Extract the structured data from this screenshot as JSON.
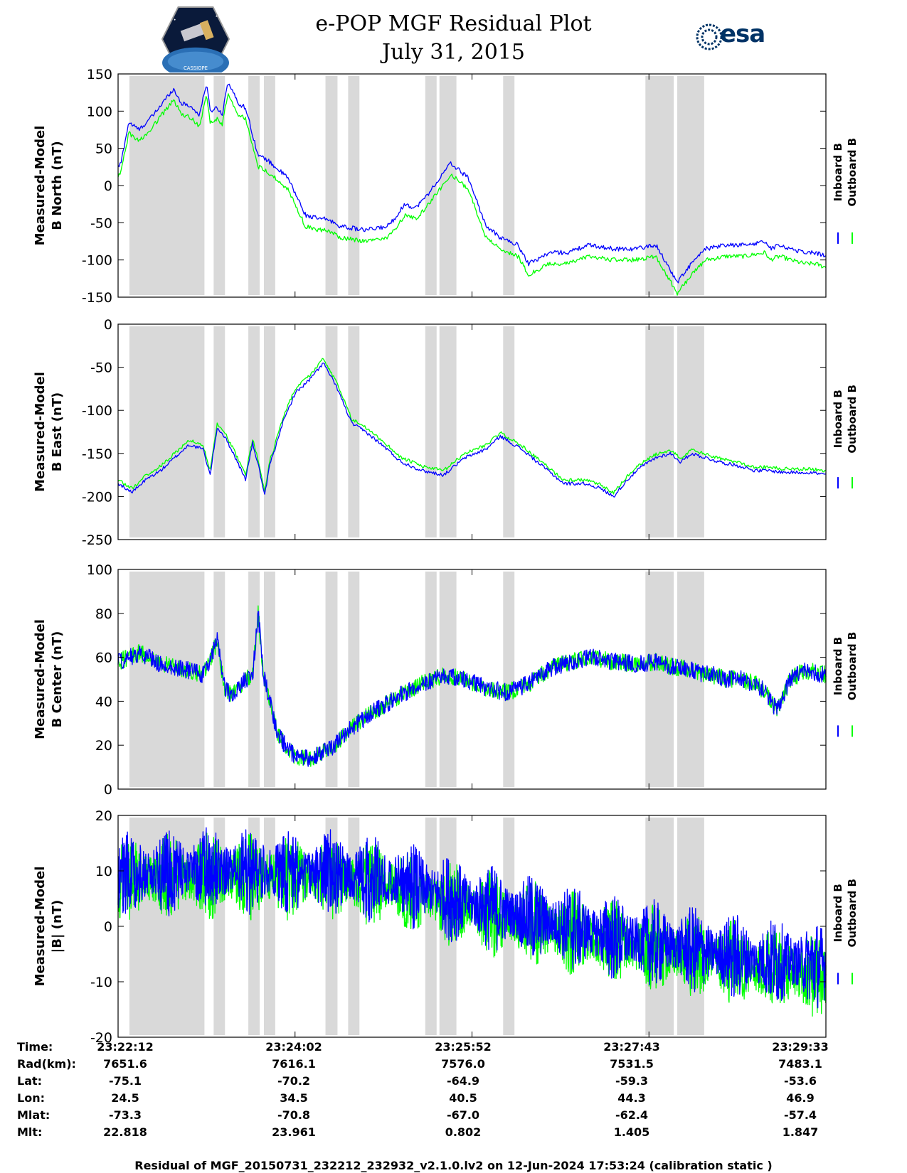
{
  "header": {
    "title_line1": "e-POP MGF Residual Plot",
    "title_line2": "July 31, 2015",
    "esa_logo_text": "esa",
    "left_logo_text": "CASSIOPE"
  },
  "colors": {
    "inboard": "#0000ff",
    "outboard": "#00ff00",
    "shade": "#d9d9d9"
  },
  "chart_data": [
    {
      "type": "line",
      "ylabel_line1": "Measured-Model",
      "ylabel_line2": "B North (nT)",
      "ylim": [
        -150,
        150
      ],
      "yticks": [
        150,
        100,
        50,
        0,
        -50,
        -100,
        -150
      ],
      "series": [
        {
          "name": "Inboard B",
          "x": [
            0,
            0.4,
            1.5,
            3,
            5,
            7.8,
            9,
            10,
            11.5,
            12.5,
            13,
            14,
            14.7,
            15.5,
            17,
            18,
            19.8,
            21,
            24,
            26.5,
            28.5,
            29.5,
            31.5,
            35,
            38,
            39,
            40.5,
            42,
            43.5,
            47,
            49.5,
            52,
            54,
            56.5,
            58,
            61,
            63,
            63.5,
            66.5,
            70,
            73,
            76,
            79,
            81,
            83,
            86,
            88.5,
            91.5,
            92,
            93.5,
            95,
            97,
            98.5,
            100
          ],
          "values": [
            25,
            30,
            85,
            75,
            95,
            130,
            110,
            108,
            95,
            138,
            100,
            105,
            95,
            140,
            110,
            105,
            40,
            35,
            10,
            -40,
            -45,
            -45,
            -55,
            -60,
            -55,
            -45,
            -25,
            -30,
            -15,
            30,
            10,
            -55,
            -70,
            -80,
            -105,
            -90,
            -90,
            -90,
            -80,
            -85,
            -85,
            -80,
            -130,
            -105,
            -85,
            -80,
            -80,
            -75,
            -85,
            -80,
            -85,
            -90,
            -90,
            -95
          ]
        },
        {
          "name": "Outboard B",
          "x": [
            0,
            0.4,
            1.5,
            3,
            5,
            7.8,
            9,
            10,
            11.5,
            12.5,
            13,
            14,
            14.7,
            15.5,
            17,
            18,
            19.8,
            21,
            24,
            26.5,
            28.5,
            29.5,
            31.5,
            35,
            38,
            39,
            40.5,
            42,
            43.5,
            47,
            49.5,
            52,
            54,
            56.5,
            58,
            61,
            63,
            63.5,
            66.5,
            70,
            73,
            76,
            79,
            81,
            83,
            86,
            88.5,
            91.5,
            92,
            93.5,
            95,
            97,
            98.5,
            100
          ],
          "values": [
            12,
            18,
            70,
            60,
            80,
            115,
            95,
            93,
            80,
            122,
            85,
            90,
            80,
            124,
            94,
            90,
            25,
            20,
            -5,
            -55,
            -60,
            -60,
            -70,
            -75,
            -70,
            -60,
            -40,
            -45,
            -30,
            15,
            -5,
            -70,
            -85,
            -95,
            -120,
            -105,
            -105,
            -105,
            -95,
            -100,
            -100,
            -95,
            -145,
            -120,
            -100,
            -95,
            -95,
            -90,
            -100,
            -95,
            -100,
            -105,
            -105,
            -110
          ]
        }
      ]
    },
    {
      "type": "line",
      "ylabel_line1": "Measured-Model",
      "ylabel_line2": "B East (nT)",
      "ylim": [
        -250,
        0
      ],
      "yticks": [
        0,
        -50,
        -100,
        -150,
        -200,
        -250
      ],
      "series": [
        {
          "name": "Inboard B",
          "x": [
            0,
            2,
            4,
            6,
            8,
            10,
            12,
            13,
            14,
            15,
            16,
            18,
            19,
            20,
            20.7,
            21.5,
            22,
            23,
            25,
            27,
            29,
            31,
            33,
            35,
            38,
            40,
            43,
            46,
            49,
            52,
            54,
            57,
            60,
            63,
            64,
            66,
            68,
            70,
            72,
            74,
            76,
            78,
            79.5,
            81,
            83,
            85,
            88,
            90,
            92,
            94,
            96,
            98,
            100
          ],
          "values": [
            -185,
            -195,
            -180,
            -170,
            -155,
            -140,
            -145,
            -175,
            -120,
            -130,
            -145,
            -180,
            -138,
            -170,
            -200,
            -160,
            -150,
            -120,
            -80,
            -65,
            -45,
            -75,
            -115,
            -125,
            -145,
            -160,
            -170,
            -175,
            -155,
            -145,
            -130,
            -145,
            -165,
            -185,
            -185,
            -185,
            -190,
            -200,
            -180,
            -165,
            -155,
            -150,
            -160,
            -150,
            -155,
            -160,
            -165,
            -170,
            -170,
            -172,
            -172,
            -172,
            -175
          ]
        },
        {
          "name": "Outboard B",
          "x": [
            0,
            2,
            4,
            6,
            8,
            10,
            12,
            13,
            14,
            15,
            16,
            18,
            19,
            20,
            20.7,
            21.5,
            22,
            23,
            25,
            27,
            29,
            31,
            33,
            35,
            38,
            40,
            43,
            46,
            49,
            52,
            54,
            57,
            60,
            63,
            64,
            66,
            68,
            70,
            72,
            74,
            76,
            78,
            79.5,
            81,
            83,
            85,
            88,
            90,
            92,
            94,
            96,
            98,
            100
          ],
          "values": [
            -181,
            -191,
            -175,
            -165,
            -150,
            -135,
            -140,
            -170,
            -115,
            -125,
            -140,
            -175,
            -133,
            -165,
            -195,
            -155,
            -145,
            -115,
            -75,
            -60,
            -40,
            -70,
            -110,
            -120,
            -140,
            -155,
            -165,
            -170,
            -150,
            -140,
            -126,
            -141,
            -161,
            -181,
            -181,
            -181,
            -186,
            -196,
            -176,
            -161,
            -151,
            -146,
            -156,
            -146,
            -151,
            -156,
            -161,
            -166,
            -166,
            -168,
            -168,
            -168,
            -171
          ]
        }
      ]
    },
    {
      "type": "line",
      "ylabel_line1": "Measured-Model",
      "ylabel_line2": "B Center (nT)",
      "ylim": [
        0,
        100
      ],
      "yticks": [
        100,
        80,
        60,
        40,
        20,
        0
      ],
      "series": [
        {
          "name": "Inboard B",
          "x": [
            0,
            3,
            6,
            9,
            12,
            13,
            14,
            15,
            16,
            18,
            19,
            19.8,
            20.5,
            21.5,
            22.5,
            24,
            25,
            27,
            30,
            33,
            36,
            40,
            43,
            46,
            49,
            52,
            55,
            58,
            61,
            64,
            67,
            70,
            73,
            76,
            78,
            80,
            82,
            84,
            86,
            88,
            90,
            91.5,
            93,
            95,
            97,
            100
          ],
          "values": [
            58,
            62,
            57,
            55,
            52,
            58,
            68,
            47,
            42,
            50,
            52,
            80,
            52,
            40,
            25,
            18,
            15,
            14,
            18,
            28,
            35,
            43,
            48,
            52,
            50,
            46,
            44,
            48,
            55,
            58,
            60,
            58,
            57,
            58,
            56,
            55,
            53,
            52,
            50,
            50,
            48,
            44,
            36,
            50,
            54,
            52
          ]
        },
        {
          "name": "Outboard B",
          "x": [
            0,
            3,
            6,
            9,
            12,
            13,
            14,
            15,
            16,
            18,
            19,
            19.8,
            20.5,
            21.5,
            22.5,
            24,
            25,
            27,
            30,
            33,
            36,
            40,
            43,
            46,
            49,
            52,
            55,
            58,
            61,
            64,
            67,
            70,
            73,
            76,
            78,
            80,
            82,
            84,
            86,
            88,
            90,
            91.5,
            93,
            95,
            97,
            100
          ],
          "values": [
            58,
            62,
            57,
            55,
            52,
            58,
            68,
            47,
            42,
            50,
            52,
            80,
            52,
            40,
            25,
            18,
            15,
            14,
            18,
            28,
            35,
            43,
            48,
            52,
            50,
            46,
            44,
            48,
            55,
            58,
            60,
            58,
            57,
            58,
            56,
            55,
            53,
            52,
            50,
            50,
            48,
            44,
            36,
            50,
            54,
            52
          ]
        }
      ]
    },
    {
      "type": "line",
      "ylabel_line1": "Measured-Model",
      "ylabel_line2": "|B| (nT)",
      "ylim": [
        -20,
        20
      ],
      "yticks": [
        20,
        10,
        0,
        -10,
        -20
      ],
      "series": [
        {
          "name": "Inboard B",
          "x": [
            0,
            10,
            20,
            30,
            40,
            50,
            60,
            70,
            80,
            90,
            100
          ],
          "values": [
            9,
            10,
            10,
            9.5,
            8,
            4,
            1,
            -2,
            -4,
            -6,
            -7
          ]
        },
        {
          "name": "Outboard B",
          "x": [
            0,
            10,
            20,
            30,
            40,
            50,
            60,
            70,
            80,
            90,
            100
          ],
          "values": [
            8,
            9,
            9,
            8.5,
            7,
            3,
            0,
            -3,
            -5,
            -7.5,
            -9
          ]
        }
      ]
    }
  ],
  "shaded_intervals": [
    [
      1.6,
      12.2
    ],
    [
      13.5,
      15.1
    ],
    [
      18.4,
      20.0
    ],
    [
      20.6,
      22.2
    ],
    [
      29.3,
      31.0
    ],
    [
      32.5,
      34.1
    ],
    [
      43.4,
      45.0
    ],
    [
      45.4,
      47.8
    ],
    [
      54.4,
      56.0
    ],
    [
      74.5,
      78.5
    ],
    [
      79.0,
      82.8
    ]
  ],
  "legend": {
    "inboard": "Inboard B",
    "outboard": "Outboard B"
  },
  "xticks": [
    {
      "time": "23:22:12",
      "rad": "7651.6",
      "lat": "-75.1",
      "lon": "24.5",
      "mlat": "-73.3",
      "mlt": "22.818"
    },
    {
      "time": "23:24:02",
      "rad": "7616.1",
      "lat": "-70.2",
      "lon": "34.5",
      "mlat": "-70.8",
      "mlt": "23.961"
    },
    {
      "time": "23:25:52",
      "rad": "7576.0",
      "lat": "-64.9",
      "lon": "40.5",
      "mlat": "-67.0",
      "mlt": "0.802"
    },
    {
      "time": "23:27:43",
      "rad": "7531.5",
      "lat": "-59.3",
      "lon": "44.3",
      "mlat": "-62.4",
      "mlt": "1.405"
    },
    {
      "time": "23:29:33",
      "rad": "7483.1",
      "lat": "-53.6",
      "lon": "46.9",
      "mlat": "-57.4",
      "mlt": "1.847"
    }
  ],
  "row_labels": {
    "time": "Time:",
    "rad": "Rad(km):",
    "lat": "Lat:",
    "lon": "Lon:",
    "mlat": "Mlat:",
    "mlt": "Mlt:"
  },
  "footer": "Residual of MGF_20150731_232212_232932_v2.1.0.lv2 on 12-Jun-2024 17:53:24 (calibration static )"
}
